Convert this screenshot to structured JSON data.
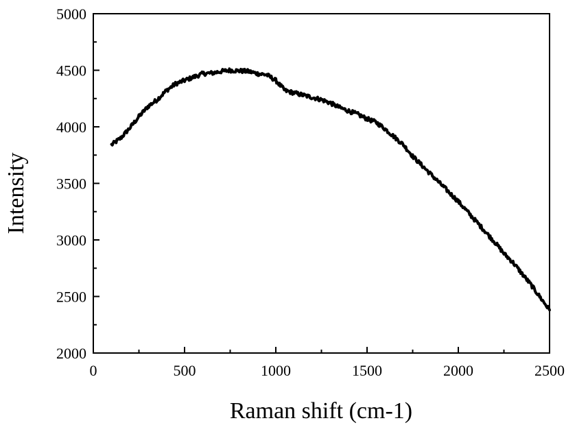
{
  "chart_data": {
    "type": "line",
    "title": "",
    "xlabel": "Raman shift (cm-1)",
    "ylabel": "Intensity",
    "xlim": [
      0,
      2500
    ],
    "ylim": [
      2000,
      5000
    ],
    "x_ticks": [
      0,
      500,
      1000,
      1500,
      2000,
      2500
    ],
    "y_ticks": [
      2000,
      2500,
      3000,
      3500,
      4000,
      4500,
      5000
    ],
    "x_tick_labels": [
      "0",
      "500",
      "1000",
      "1500",
      "2000",
      "2500"
    ],
    "y_tick_labels": [
      "2000",
      "2500",
      "3000",
      "3500",
      "4000",
      "4500",
      "5000"
    ],
    "grid": false,
    "legend": "none",
    "line_color": "#000000",
    "series": [
      {
        "x": [
          100,
          150,
          200,
          250,
          300,
          350,
          400,
          450,
          500,
          550,
          600,
          650,
          700,
          750,
          800,
          850,
          900,
          950,
          1000,
          1050,
          1100,
          1150,
          1200,
          1250,
          1300,
          1350,
          1400,
          1450,
          1500,
          1550,
          1600,
          1650,
          1700,
          1750,
          1800,
          1850,
          1900,
          1950,
          2000,
          2050,
          2100,
          2150,
          2200,
          2250,
          2300,
          2350,
          2400,
          2450,
          2500
        ],
        "values": [
          3840,
          3900,
          3990,
          4090,
          4180,
          4240,
          4320,
          4380,
          4410,
          4440,
          4470,
          4475,
          4490,
          4500,
          4495,
          4490,
          4470,
          4460,
          4410,
          4320,
          4300,
          4280,
          4260,
          4240,
          4210,
          4170,
          4140,
          4110,
          4070,
          4040,
          3980,
          3910,
          3840,
          3740,
          3660,
          3580,
          3500,
          3420,
          3340,
          3250,
          3160,
          3070,
          2980,
          2880,
          2800,
          2700,
          2600,
          2490,
          2380
        ]
      }
    ]
  }
}
